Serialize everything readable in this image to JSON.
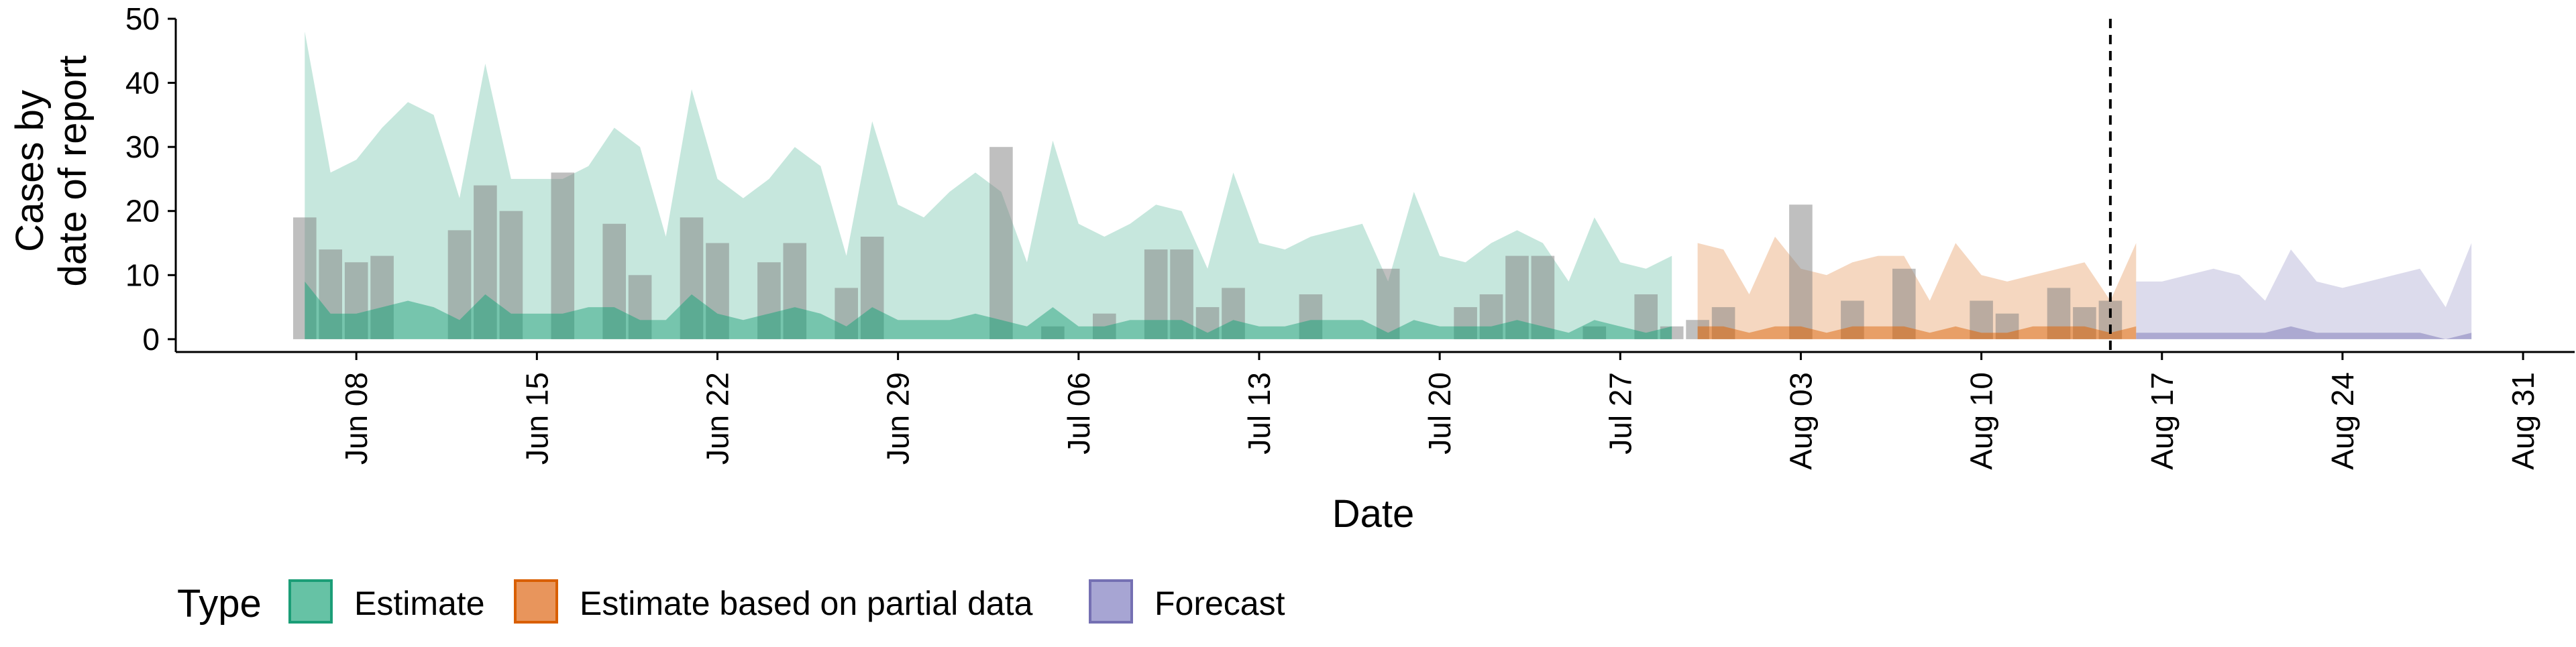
{
  "chart_data": {
    "type": "area",
    "title": "",
    "xlabel": "Date",
    "ylabel_lines": [
      "Cases by",
      "date of report"
    ],
    "x_range": [
      "2020-06-01",
      "2020-09-02"
    ],
    "ylim": [
      -2,
      50
    ],
    "y_ticks": [
      0,
      10,
      20,
      30,
      40,
      50
    ],
    "x_tick_labels": [
      "Jun 08",
      "Jun 15",
      "Jun 22",
      "Jun 29",
      "Jul 06",
      "Jul 13",
      "Jul 20",
      "Jul 27",
      "Aug 03",
      "Aug 10",
      "Aug 17",
      "Aug 24",
      "Aug 31"
    ],
    "x_tick_dates": [
      "2020-06-08",
      "2020-06-15",
      "2020-06-22",
      "2020-06-29",
      "2020-07-06",
      "2020-07-13",
      "2020-07-20",
      "2020-07-27",
      "2020-08-03",
      "2020-08-10",
      "2020-08-17",
      "2020-08-24",
      "2020-08-31"
    ],
    "vline_date": "2020-08-15",
    "legend": {
      "title": "Type",
      "position": "bottom",
      "entries": [
        {
          "label": "Estimate",
          "fill": "#66c2a5",
          "stroke": "#1b9e77"
        },
        {
          "label": "Estimate based on partial data",
          "fill": "#e8955c",
          "stroke": "#d95f02"
        },
        {
          "label": "Forecast",
          "fill": "#a7a5d3",
          "stroke": "#7570b3"
        }
      ]
    },
    "colors": {
      "estimate": "#1b9e77",
      "partial": "#d95f02",
      "forecast": "#7570b3",
      "observed_bars": "#808080",
      "vline": "#000000"
    },
    "series": [
      {
        "name": "Estimate",
        "start_date": "2020-06-06",
        "upper": [
          48,
          26,
          28,
          33,
          37,
          35,
          22,
          43,
          25,
          25,
          25,
          27,
          33,
          30,
          16,
          39,
          25,
          22,
          25,
          30,
          27,
          13,
          34,
          21,
          19,
          23,
          26,
          23,
          12,
          31,
          18,
          16,
          18,
          21,
          20,
          11,
          26,
          15,
          14,
          16,
          17,
          18,
          9,
          23,
          13,
          12,
          15,
          17,
          15,
          9,
          19,
          12,
          11,
          13
        ],
        "lower": [
          9,
          4,
          4,
          5,
          6,
          5,
          3,
          7,
          4,
          4,
          4,
          5,
          5,
          3,
          3,
          7,
          4,
          3,
          4,
          5,
          4,
          2,
          5,
          3,
          3,
          3,
          4,
          3,
          2,
          5,
          2,
          2,
          3,
          3,
          3,
          1,
          3,
          2,
          2,
          3,
          3,
          3,
          1,
          3,
          2,
          2,
          2,
          3,
          2,
          1,
          3,
          2,
          1,
          2
        ]
      },
      {
        "name": "Estimate based on partial data",
        "start_date": "2020-07-30",
        "upper": [
          15,
          14,
          7,
          16,
          11,
          10,
          12,
          13,
          13,
          6,
          15,
          10,
          9,
          10,
          11,
          12,
          6,
          15
        ],
        "lower": [
          2,
          2,
          1,
          2,
          2,
          1,
          2,
          2,
          2,
          1,
          2,
          1,
          1,
          2,
          2,
          2,
          1,
          2
        ]
      },
      {
        "name": "Forecast",
        "start_date": "2020-08-16",
        "upper": [
          9,
          9,
          10,
          11,
          10,
          6,
          14,
          9,
          8,
          9,
          10,
          11,
          5,
          15
        ],
        "lower": [
          1,
          1,
          1,
          1,
          1,
          1,
          2,
          1,
          1,
          1,
          1,
          1,
          0,
          1
        ]
      }
    ],
    "observed": {
      "name": "Observed",
      "start_date": "2020-06-06",
      "values": [
        19,
        14,
        12,
        13,
        0,
        0,
        17,
        24,
        20,
        0,
        26,
        0,
        18,
        10,
        0,
        19,
        15,
        0,
        12,
        15,
        0,
        8,
        16,
        0,
        0,
        0,
        0,
        30,
        0,
        2,
        0,
        4,
        0,
        14,
        14,
        5,
        8,
        0,
        0,
        7,
        0,
        0,
        11,
        0,
        0,
        5,
        7,
        13,
        13,
        0,
        2,
        0,
        7,
        2,
        3,
        5,
        0,
        0,
        21,
        0,
        6,
        0,
        11,
        0,
        0,
        6,
        4,
        0,
        8,
        5,
        6,
        0
      ]
    }
  }
}
